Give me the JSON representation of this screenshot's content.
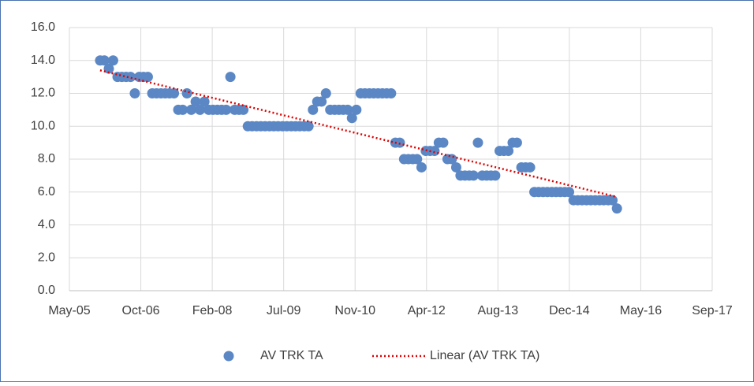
{
  "chart_data": {
    "type": "scatter",
    "xlim": [
      38500,
      43000
    ],
    "xticks": [
      {
        "value": 38500,
        "label": "May-05"
      },
      {
        "value": 39000,
        "label": "Oct-06"
      },
      {
        "value": 39500,
        "label": "Feb-08"
      },
      {
        "value": 40000,
        "label": "Jul-09"
      },
      {
        "value": 40500,
        "label": "Nov-10"
      },
      {
        "value": 41000,
        "label": "Apr-12"
      },
      {
        "value": 41500,
        "label": "Aug-13"
      },
      {
        "value": 42000,
        "label": "Dec-14"
      },
      {
        "value": 42500,
        "label": "May-16"
      },
      {
        "value": 43000,
        "label": "Sep-17"
      }
    ],
    "ylim": [
      0,
      16
    ],
    "yticks": [
      {
        "value": 0,
        "label": "0.0"
      },
      {
        "value": 2,
        "label": "2.0"
      },
      {
        "value": 4,
        "label": "4.0"
      },
      {
        "value": 6,
        "label": "6.0"
      },
      {
        "value": 8,
        "label": "8.0"
      },
      {
        "value": 10,
        "label": "10.0"
      },
      {
        "value": 12,
        "label": "12.0"
      },
      {
        "value": 14,
        "label": "14.0"
      },
      {
        "value": 16,
        "label": "16.0"
      }
    ],
    "grid": true,
    "legend": "bottom",
    "series": [
      {
        "name": "AV TRK TA",
        "color": "#5b87c5",
        "x": [
          38715,
          38745,
          38776,
          38806,
          38837,
          38867,
          38897,
          38928,
          38958,
          38989,
          39019,
          39049,
          39080,
          39110,
          39141,
          39171,
          39201,
          39232,
          39262,
          39293,
          39323,
          39353,
          39384,
          39414,
          39445,
          39475,
          39505,
          39536,
          39566,
          39597,
          39627,
          39657,
          39688,
          39718,
          39749,
          39779,
          39810,
          39840,
          39870,
          39901,
          39931,
          39961,
          39992,
          40022,
          40053,
          40083,
          40113,
          40144,
          40174,
          40205,
          40235,
          40265,
          40296,
          40326,
          40357,
          40387,
          40417,
          40448,
          40478,
          40509,
          40539,
          40569,
          40600,
          40630,
          40661,
          40691,
          40721,
          40752,
          40782,
          40813,
          40843,
          40873,
          40904,
          40934,
          40965,
          40995,
          41025,
          41056,
          41086,
          41117,
          41147,
          41177,
          41208,
          41238,
          41269,
          41299,
          41329,
          41360,
          41390,
          41421,
          41451,
          41481,
          41512,
          41542,
          41573,
          41603,
          41633,
          41664,
          41694,
          41725,
          41755,
          41785,
          41816,
          41846,
          41877,
          41907,
          41937,
          41968,
          41998,
          42029,
          42059,
          42089,
          42120,
          42150,
          42181,
          42211,
          42241,
          42272,
          42302,
          42333
        ],
        "values": [
          14,
          14,
          13.5,
          14,
          13,
          13,
          13,
          13,
          12,
          13,
          13,
          13,
          12,
          12,
          12,
          12,
          12,
          12,
          11,
          11,
          12,
          11,
          11.5,
          11,
          11.5,
          11,
          11,
          11,
          11,
          11,
          13,
          11,
          11,
          11,
          10,
          10,
          10,
          10,
          10,
          10,
          10,
          10,
          10,
          10,
          10,
          10,
          10,
          10,
          10,
          11,
          11.5,
          11.5,
          12,
          11,
          11,
          11,
          11,
          11,
          10.5,
          11,
          12,
          12,
          12,
          12,
          12,
          12,
          12,
          12,
          9,
          9,
          8,
          8,
          8,
          8,
          7.5,
          8.5,
          8.5,
          8.5,
          9,
          9,
          8,
          8,
          7.5,
          7,
          7,
          7,
          7,
          9,
          7,
          7,
          7,
          7,
          8.5,
          8.5,
          8.5,
          9,
          9,
          7.5,
          7.5,
          7.5,
          6,
          6,
          6,
          6,
          6,
          6,
          6,
          6,
          6,
          5.5,
          5.5,
          5.5,
          5.5,
          5.5,
          5.5,
          5.5,
          5.5,
          5.5,
          5.5,
          5
        ]
      },
      {
        "name": "Linear (AV TRK TA)",
        "color": "#e00000",
        "style": "dotted",
        "x": [
          38715,
          42333
        ],
        "values": [
          13.4,
          5.7
        ]
      }
    ]
  }
}
